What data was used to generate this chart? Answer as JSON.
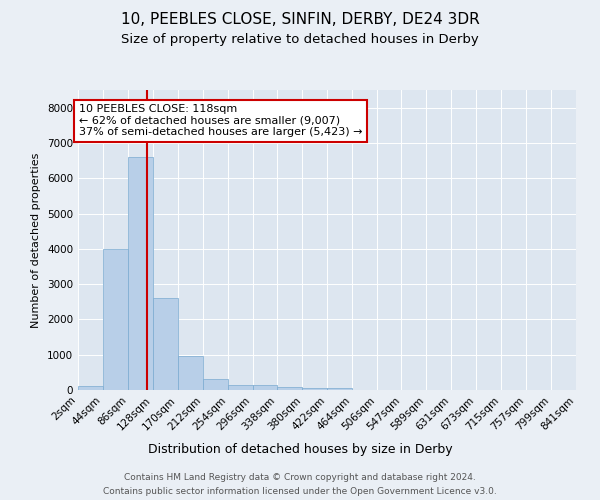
{
  "title1": "10, PEEBLES CLOSE, SINFIN, DERBY, DE24 3DR",
  "title2": "Size of property relative to detached houses in Derby",
  "xlabel": "Distribution of detached houses by size in Derby",
  "ylabel": "Number of detached properties",
  "bar_edges": [
    2,
    44,
    86,
    128,
    170,
    212,
    254,
    296,
    338,
    380,
    422,
    464,
    506,
    547,
    589,
    631,
    673,
    715,
    757,
    799,
    841
  ],
  "bar_heights": [
    100,
    4000,
    6600,
    2600,
    950,
    320,
    150,
    130,
    90,
    70,
    65,
    0,
    0,
    0,
    0,
    0,
    0,
    0,
    0,
    0
  ],
  "bar_color": "#b8cfe8",
  "bar_edgecolor": "#7aaad0",
  "property_size": 118,
  "vline_color": "#cc0000",
  "annotation_text": "10 PEEBLES CLOSE: 118sqm\n← 62% of detached houses are smaller (9,007)\n37% of semi-detached houses are larger (5,423) →",
  "annotation_box_color": "#cc0000",
  "ylim": [
    0,
    8500
  ],
  "yticks": [
    0,
    1000,
    2000,
    3000,
    4000,
    5000,
    6000,
    7000,
    8000
  ],
  "bg_color": "#eaeff5",
  "plot_bg_color": "#dde6f0",
  "footer1": "Contains HM Land Registry data © Crown copyright and database right 2024.",
  "footer2": "Contains public sector information licensed under the Open Government Licence v3.0.",
  "title1_fontsize": 11,
  "title2_fontsize": 9.5,
  "xlabel_fontsize": 9,
  "ylabel_fontsize": 8,
  "tick_fontsize": 7.5,
  "annotation_fontsize": 8,
  "footer_fontsize": 6.5
}
